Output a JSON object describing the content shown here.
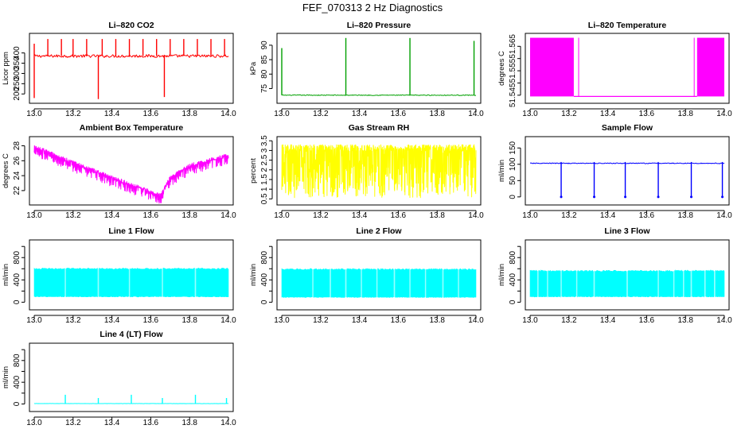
{
  "figure": {
    "title": "FEF_070313  2 Hz Diagnostics"
  },
  "chart_data": [
    {
      "id": "co2",
      "type": "line",
      "title": "Li–820 CO2",
      "xlabel": "",
      "ylabel": "Licor ppm",
      "xlim": [
        13.0,
        14.0
      ],
      "ylim": [
        170,
        480
      ],
      "xticks": [
        13.0,
        13.2,
        13.4,
        13.6,
        13.8,
        14.0
      ],
      "yticks": [
        200,
        250,
        300,
        350,
        400
      ],
      "color": "#ff0000",
      "pattern": "spikes",
      "baseline": 385,
      "noise": 14,
      "spikes": [
        [
          13.0,
          445
        ],
        [
          13.0,
          180
        ],
        [
          13.07,
          468
        ],
        [
          13.14,
          468
        ],
        [
          13.2,
          468
        ],
        [
          13.27,
          468
        ],
        [
          13.33,
          175
        ],
        [
          13.35,
          468
        ],
        [
          13.42,
          468
        ],
        [
          13.49,
          468
        ],
        [
          13.56,
          468
        ],
        [
          13.63,
          468
        ],
        [
          13.67,
          185
        ],
        [
          13.7,
          468
        ],
        [
          13.77,
          468
        ],
        [
          13.84,
          468
        ],
        [
          13.91,
          468
        ],
        [
          13.98,
          468
        ]
      ],
      "series": [
        {
          "values": "2 Hz trace (approx.)"
        }
      ]
    },
    {
      "id": "pressure",
      "type": "line",
      "title": "Li–820 Pressure",
      "xlabel": "",
      "ylabel": "kPa",
      "xlim": [
        13.0,
        14.0
      ],
      "ylim": [
        71,
        93
      ],
      "xticks": [
        13.0,
        13.2,
        13.4,
        13.6,
        13.8,
        14.0
      ],
      "yticks": [
        75,
        80,
        85,
        90
      ],
      "color": "#00a000",
      "pattern": "spikes",
      "baseline": 72.7,
      "noise": 0.25,
      "spikes": [
        [
          13.0,
          89
        ],
        [
          13.33,
          92.5
        ],
        [
          13.66,
          92.5
        ],
        [
          13.99,
          91.5
        ]
      ],
      "series": [
        {
          "values": "2 Hz trace (approx.)"
        }
      ]
    },
    {
      "id": "temperature",
      "type": "line",
      "title": "Li–820 Temperature",
      "xlabel": "",
      "ylabel": "degrees C",
      "xlim": [
        13.0,
        14.0
      ],
      "ylim": [
        51.543,
        51.569
      ],
      "xticks": [
        13.0,
        13.2,
        13.4,
        13.6,
        13.8,
        14.0
      ],
      "yticks": [
        51.545,
        51.55,
        51.555,
        51.56,
        51.565
      ],
      "ytick_labels": [
        "51.545",
        "",
        "51.555",
        "",
        "51.565"
      ],
      "color": "#ff00ff",
      "pattern": "blocks",
      "low": 51.5445,
      "high": 51.5685,
      "blocks": [
        [
          13.0,
          13.225
        ],
        [
          13.86,
          14.0
        ]
      ],
      "lines": [
        13.25,
        13.845
      ],
      "series": [
        {
          "values": "2 Hz trace (approx.)"
        }
      ]
    },
    {
      "id": "ambient",
      "type": "line",
      "title": "Ambient Box Temperature",
      "xlabel": "",
      "ylabel": "degrees C",
      "xlim": [
        13.0,
        14.0
      ],
      "ylim": [
        20.5,
        28.8
      ],
      "xticks": [
        13.0,
        13.2,
        13.4,
        13.6,
        13.8,
        14.0
      ],
      "yticks": [
        22,
        24,
        26,
        28
      ],
      "color": "#ff00ff",
      "pattern": "profile",
      "profile": [
        [
          13.0,
          28.2
        ],
        [
          13.05,
          27.6
        ],
        [
          13.2,
          26.0
        ],
        [
          13.4,
          24.0
        ],
        [
          13.55,
          22.6
        ],
        [
          13.65,
          21.6
        ],
        [
          13.7,
          24.0
        ],
        [
          13.8,
          25.6
        ],
        [
          13.9,
          26.3
        ],
        [
          14.0,
          27.0
        ]
      ],
      "band": 1.5,
      "series": [
        {
          "values": "2 Hz trace (approx.)"
        }
      ]
    },
    {
      "id": "rh",
      "type": "line",
      "title": "Gas Stream RH",
      "xlabel": "",
      "ylabel": "percent",
      "xlim": [
        13.0,
        14.0
      ],
      "ylim": [
        0.35,
        3.55
      ],
      "xticks": [
        13.0,
        13.2,
        13.4,
        13.6,
        13.8,
        14.0
      ],
      "yticks": [
        0.5,
        1.0,
        1.5,
        2.0,
        2.5,
        3.0,
        3.5
      ],
      "color": "#ffff00",
      "pattern": "noise",
      "low": 0.55,
      "high": 3.3,
      "series": [
        {
          "values": "2 Hz trace (approx.)"
        }
      ]
    },
    {
      "id": "sample",
      "type": "line",
      "title": "Sample Flow",
      "xlabel": "",
      "ylabel": "ml/min",
      "xlim": [
        13.0,
        14.0
      ],
      "ylim": [
        -15,
        175
      ],
      "xticks": [
        13.0,
        13.2,
        13.4,
        13.6,
        13.8,
        14.0
      ],
      "yticks": [
        0,
        50,
        100,
        150
      ],
      "color": "#0000ff",
      "pattern": "dips",
      "baseline": 103,
      "noise": 2.5,
      "dips": [
        13.16,
        13.33,
        13.49,
        13.66,
        13.83,
        13.99
      ],
      "dip_value": 0,
      "series": [
        {
          "values": "2 Hz trace (approx.)"
        }
      ]
    },
    {
      "id": "line1",
      "type": "line",
      "title": "Line 1 Flow",
      "xlabel": "",
      "ylabel": "ml/min",
      "xlim": [
        13.0,
        14.0
      ],
      "ylim": [
        -80,
        1060
      ],
      "xticks": [
        13.0,
        13.2,
        13.4,
        13.6,
        13.8,
        14.0
      ],
      "yticks": [
        0,
        200,
        400,
        600,
        800,
        1000
      ],
      "ytick_labels": [
        "0",
        "",
        "400",
        "",
        "800",
        ""
      ],
      "color": "#00ffff",
      "pattern": "band",
      "low": 100,
      "high": 600,
      "gaps": [
        13.16,
        13.33,
        13.49,
        13.66,
        13.83
      ],
      "series": [
        {
          "values": "2 Hz trace (approx.)"
        }
      ]
    },
    {
      "id": "line2",
      "type": "line",
      "title": "Line 2 Flow",
      "xlabel": "",
      "ylabel": "ml/min",
      "xlim": [
        13.0,
        14.0
      ],
      "ylim": [
        -80,
        1060
      ],
      "xticks": [
        13.0,
        13.2,
        13.4,
        13.6,
        13.8,
        14.0
      ],
      "yticks": [
        0,
        200,
        400,
        600,
        800,
        1000
      ],
      "ytick_labels": [
        "0",
        "",
        "400",
        "",
        "800",
        ""
      ],
      "color": "#00ffff",
      "pattern": "band",
      "low": 90,
      "high": 590,
      "gaps": [
        13.16,
        13.25,
        13.33,
        13.41,
        13.49,
        13.58,
        13.66,
        13.74,
        13.83,
        13.91
      ],
      "series": [
        {
          "values": "2 Hz trace (approx.)"
        }
      ]
    },
    {
      "id": "line3",
      "type": "line",
      "title": "Line 3 Flow",
      "xlabel": "",
      "ylabel": "ml/min",
      "xlim": [
        13.0,
        14.0
      ],
      "ylim": [
        -80,
        1060
      ],
      "xticks": [
        13.0,
        13.2,
        13.4,
        13.6,
        13.8,
        14.0
      ],
      "yticks": [
        0,
        200,
        400,
        600,
        800,
        1000
      ],
      "ytick_labels": [
        "0",
        "",
        "400",
        "",
        "800",
        ""
      ],
      "color": "#00ffff",
      "pattern": "band",
      "low": 100,
      "high": 560,
      "gaps": [
        13.04,
        13.09,
        13.16,
        13.24,
        13.33,
        13.5,
        13.66,
        13.74,
        13.79,
        13.83,
        13.9,
        13.95
      ],
      "series": [
        {
          "values": "2 Hz trace (approx.)"
        }
      ]
    },
    {
      "id": "line4",
      "type": "line",
      "title": "Line 4 (LT) Flow",
      "xlabel": "",
      "ylabel": "ml/min",
      "xlim": [
        13.0,
        14.0
      ],
      "ylim": [
        -80,
        1060
      ],
      "xticks": [
        13.0,
        13.2,
        13.4,
        13.6,
        13.8,
        14.0
      ],
      "yticks": [
        0,
        200,
        400,
        600,
        800,
        1000
      ],
      "ytick_labels": [
        "0",
        "",
        "400",
        "",
        "800",
        ""
      ],
      "color": "#00ffff",
      "pattern": "spikes",
      "baseline": 8,
      "noise": 3,
      "spikes": [
        [
          13.16,
          170
        ],
        [
          13.33,
          110
        ],
        [
          13.5,
          170
        ],
        [
          13.66,
          110
        ],
        [
          13.83,
          170
        ],
        [
          13.99,
          110
        ]
      ],
      "series": [
        {
          "values": "2 Hz trace (approx.)"
        }
      ]
    }
  ]
}
